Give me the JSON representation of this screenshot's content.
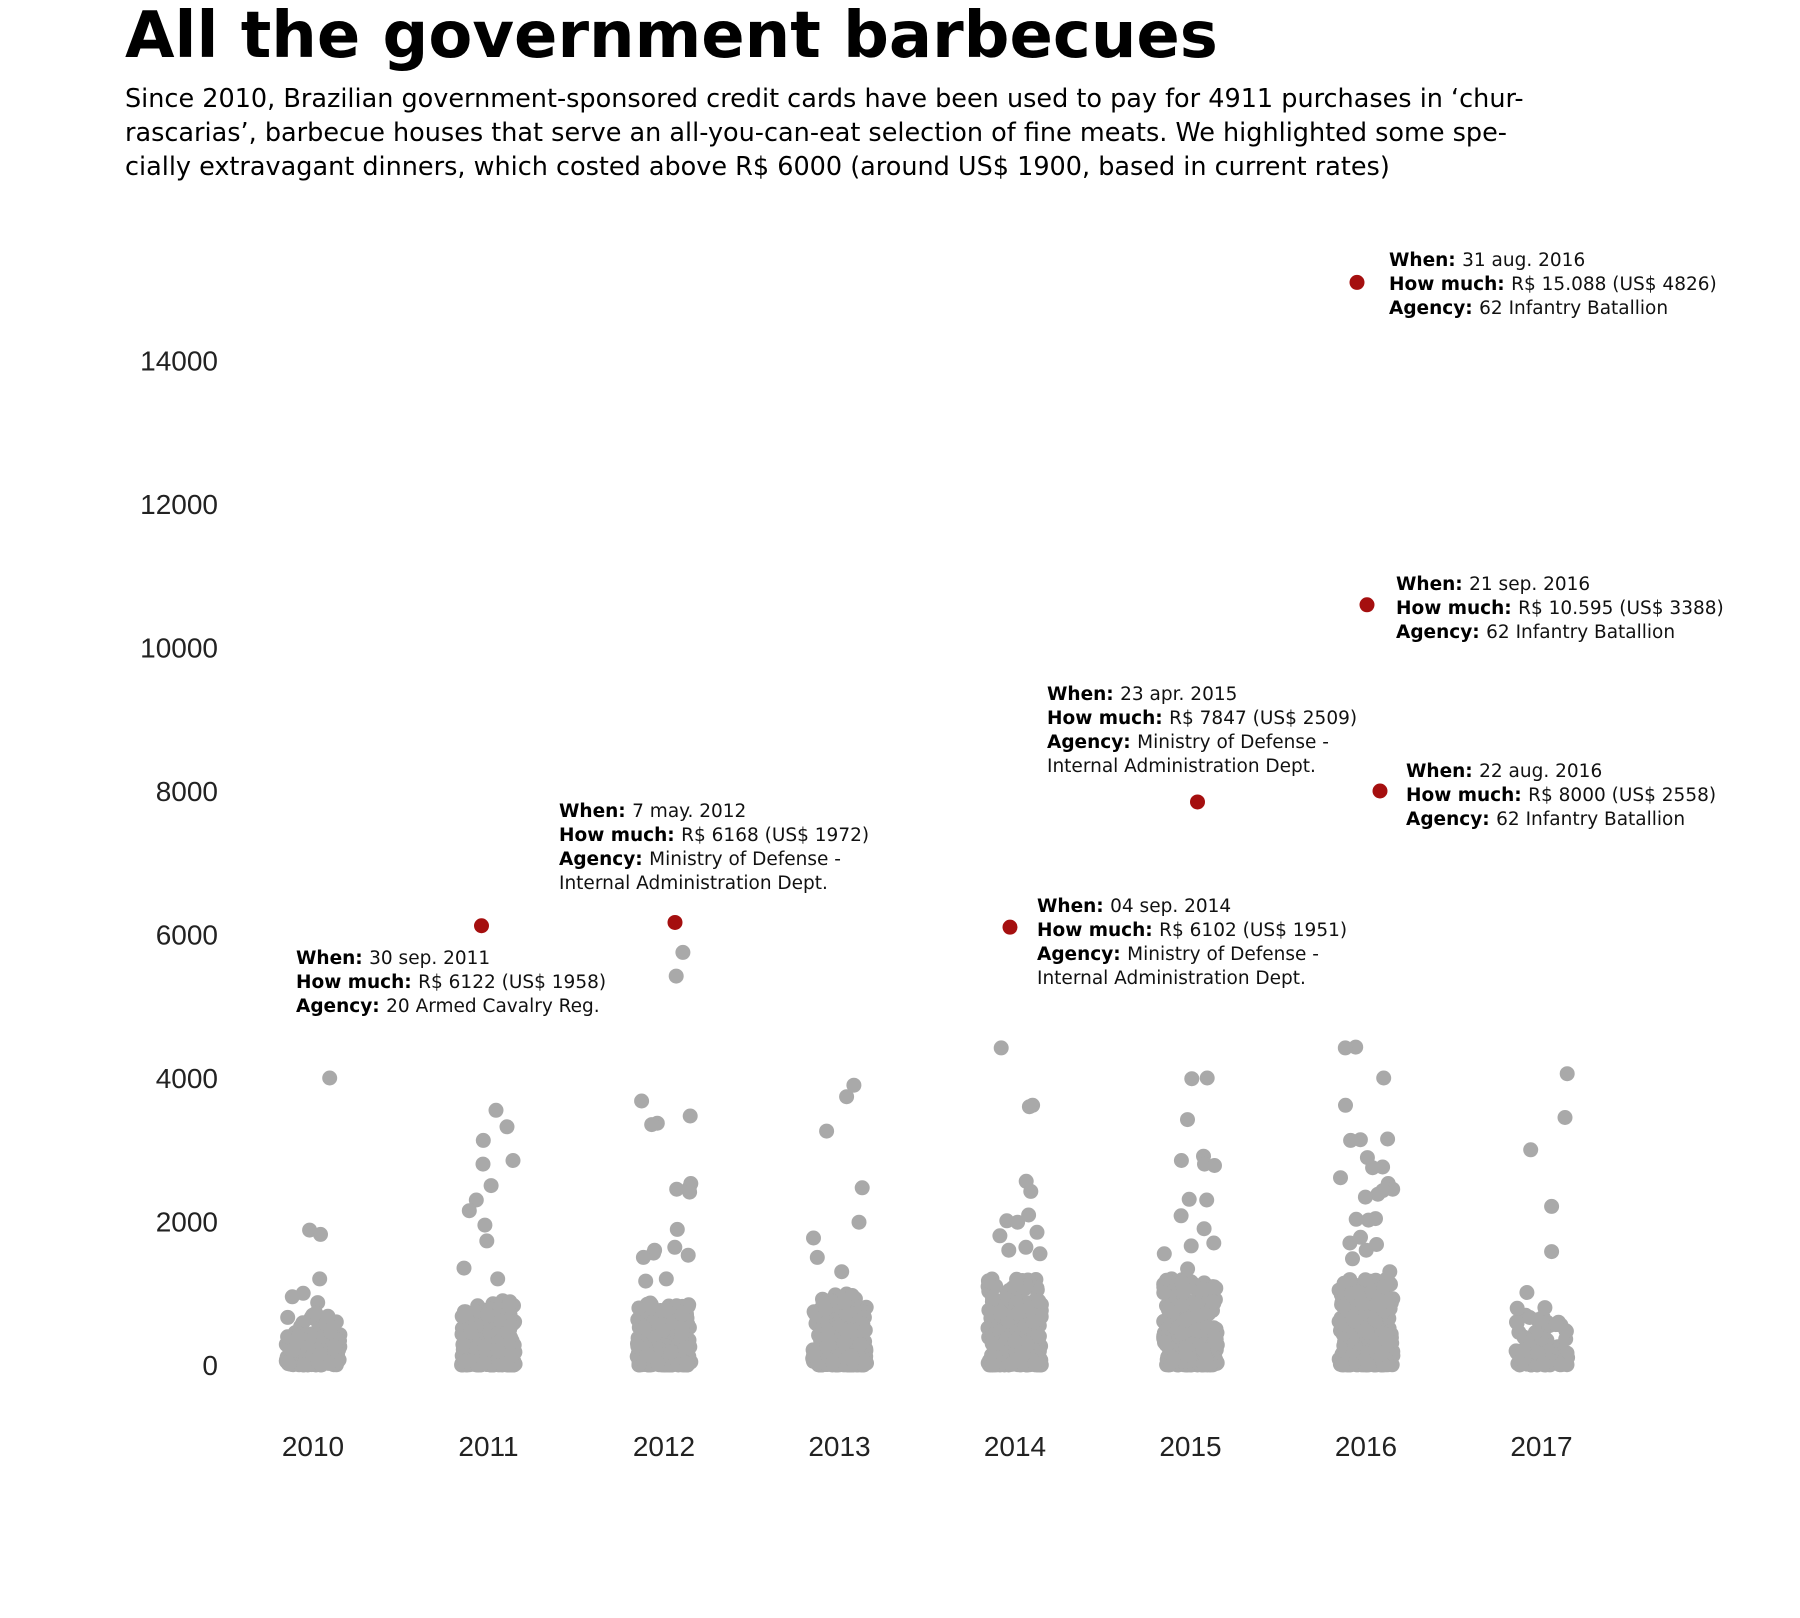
{
  "page": {
    "title": "All the government barbecues",
    "subtitle_lines": [
      "Since 2010, Brazilian government-sponsored credit cards have been used to pay for 4911 purchases in ‘chur-",
      "rascarias’, barbecue houses that serve an all-you-can-eat selection of fine meats. We highlighted some spe-",
      "cially extravagant dinners, which costed above R$ 6000 (around US$ 1900, based in current rates)"
    ]
  },
  "colors": {
    "regular_point": "#a9a9a9",
    "highlight_point": "#a50f0f",
    "text": "#000000"
  },
  "chart_data": {
    "type": "scatter",
    "title": "All the government barbecues",
    "xlabel": "",
    "ylabel": "",
    "categories": [
      "2010",
      "2011",
      "2012",
      "2013",
      "2014",
      "2015",
      "2016",
      "2017"
    ],
    "yticks": [
      0,
      2000,
      4000,
      6000,
      8000,
      10000,
      12000,
      14000
    ],
    "ylim": [
      -900,
      15700
    ],
    "grid": false,
    "legend": "none",
    "outliers_shown": {
      "2010": [
        4000,
        1880,
        1820,
        1200,
        1000,
        950,
        870,
        720,
        680
      ],
      "2011": [
        3550,
        3320,
        3130,
        2850,
        2800,
        2500,
        2300,
        2150,
        1950,
        1730,
        1350,
        1200
      ],
      "2012": [
        5750,
        5420,
        3680,
        3470,
        3370,
        3350,
        2530,
        2470,
        2450,
        2410,
        1890,
        1640,
        1600,
        1560,
        1530,
        1500,
        1200,
        1170
      ],
      "2013": [
        3900,
        3740,
        3260,
        2470,
        1990,
        1770,
        1500,
        1300
      ],
      "2014": [
        4420,
        3620,
        3600,
        2560,
        2420,
        2090,
        2010,
        1990,
        1850,
        1800,
        1640,
        1600,
        1550
      ],
      "2015": [
        4000,
        3990,
        3420,
        2910,
        2850,
        2800,
        2780,
        2310,
        2300,
        2080,
        1900,
        1700,
        1660,
        1550,
        1340
      ],
      "2016": [
        4430,
        4420,
        4000,
        3620,
        3150,
        3140,
        3130,
        2890,
        2760,
        2750,
        2610,
        2530,
        2450,
        2430,
        2380,
        2340,
        2040,
        2030,
        2020,
        1780,
        1700,
        1680,
        1600,
        1480,
        1300
      ],
      "2017": [
        4060,
        3450,
        3000,
        2210,
        1580,
        1010,
        800,
        790
      ]
    },
    "highlighted": [
      {
        "year": "2011",
        "value": 6122,
        "when": "30 sep. 2011",
        "how_much": "R$ 6122 (US$ 1958)",
        "agency_lines": [
          "20 Armed Cavalry Reg."
        ]
      },
      {
        "year": "2012",
        "value": 6168,
        "when": "7 may. 2012",
        "how_much": "R$ 6168 (US$ 1972)",
        "agency_lines": [
          "Ministry of Defense -",
          "Internal Administration Dept."
        ]
      },
      {
        "year": "2014",
        "value": 6102,
        "when": "04 sep. 2014",
        "how_much": "R$ 6102 (US$ 1951)",
        "agency_lines": [
          "Ministry of Defense -",
          "Internal Administration Dept."
        ]
      },
      {
        "year": "2015",
        "value": 7847,
        "when": "23 apr. 2015",
        "how_much": "R$ 7847 (US$ 2509)",
        "agency_lines": [
          "Ministry of Defense -",
          "Internal Administration Dept."
        ]
      },
      {
        "year": "2016",
        "value": 15088,
        "when": "31 aug. 2016",
        "how_much": "R$ 15.088 (US$ 4826)",
        "agency_lines": [
          "62 Infantry Batallion"
        ]
      },
      {
        "year": "2016",
        "value": 10595,
        "when": "21 sep. 2016",
        "how_much": "R$ 10.595 (US$ 3388)",
        "agency_lines": [
          "62 Infantry Batallion"
        ]
      },
      {
        "year": "2016",
        "value": 8000,
        "when": "22 aug. 2016",
        "how_much": "R$ 8000 (US$ 2558)",
        "agency_lines": [
          "62 Infantry Batallion"
        ]
      }
    ],
    "annotation_keys": {
      "when": "When:",
      "how_much": "How much:",
      "agency": "Agency:"
    }
  }
}
